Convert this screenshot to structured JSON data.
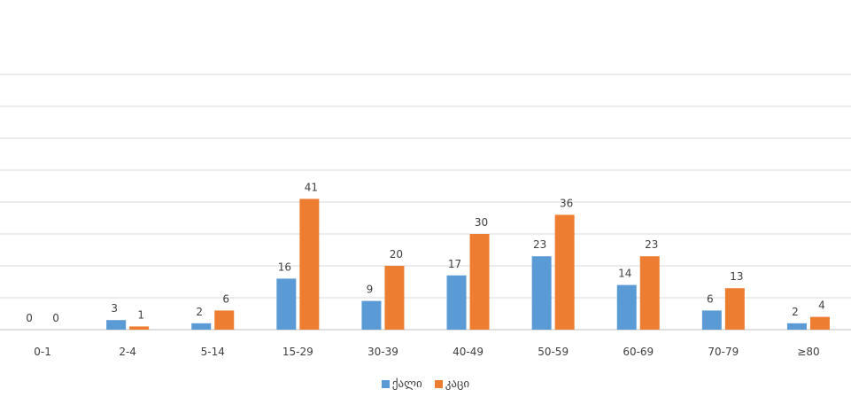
{
  "chart_data": {
    "type": "bar",
    "title": "",
    "xlabel": "",
    "ylabel": "",
    "categories": [
      "0-1",
      "2-4",
      "5-14",
      "15-29",
      "30-39",
      "40-49",
      "50-59",
      "60-69",
      "70-79",
      "≥80"
    ],
    "series": [
      {
        "name": "ქალი",
        "color": "#5b9bd5",
        "values": [
          0,
          3,
          2,
          16,
          9,
          17,
          23,
          14,
          6,
          2
        ]
      },
      {
        "name": "კაცი",
        "color": "#ed7d31",
        "values": [
          0,
          1,
          6,
          41,
          20,
          30,
          36,
          23,
          13,
          4
        ]
      }
    ],
    "ylim": [
      0,
      80
    ],
    "grid": true,
    "legend_position": "bottom"
  }
}
